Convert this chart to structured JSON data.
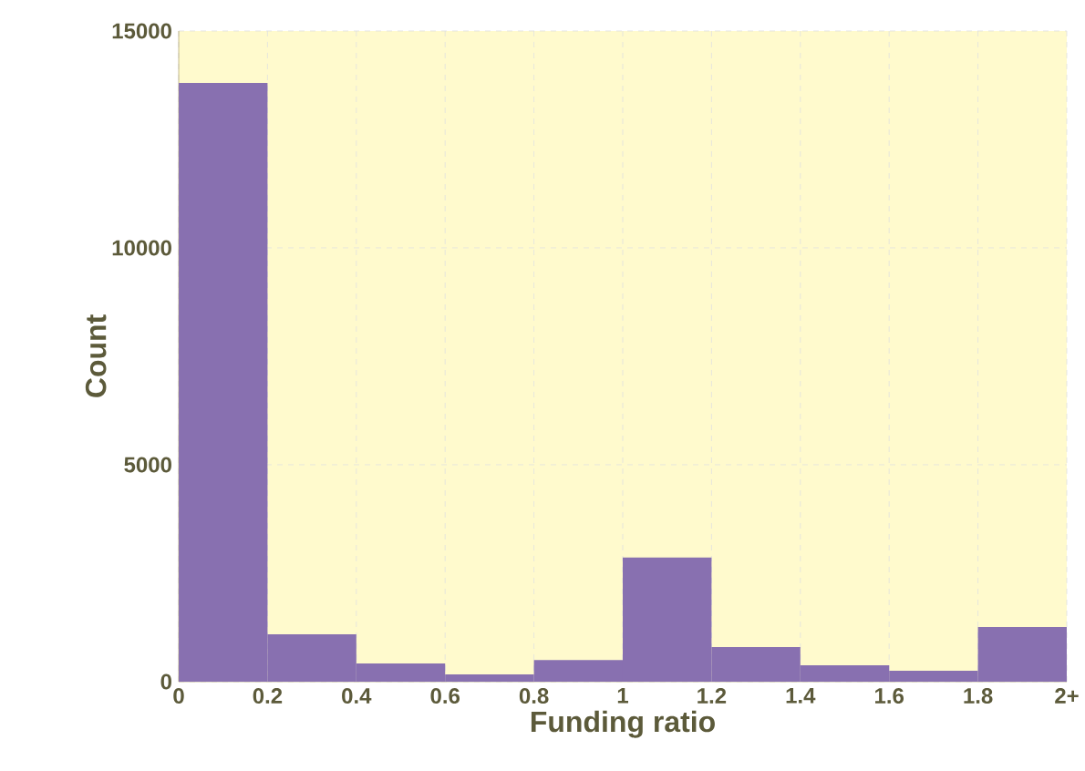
{
  "chart_data": {
    "type": "histogram",
    "xlabel": "Funding ratio",
    "ylabel": "Count",
    "bins": [
      0,
      0.2,
      0.4,
      0.6,
      0.8,
      1,
      1.2,
      1.4,
      1.6,
      1.8,
      2
    ],
    "values": [
      13800,
      1090,
      420,
      170,
      500,
      2860,
      800,
      380,
      250,
      1260
    ],
    "color": "#8870b0",
    "xlim": [
      0,
      2
    ],
    "ylim": [
      0,
      15000
    ],
    "xticks": [
      0,
      0.2,
      0.4,
      0.6,
      0.8,
      1,
      1.2,
      1.4,
      1.6,
      1.8,
      {
        "value": 2,
        "label": "2+"
      }
    ],
    "yticks": [
      0,
      5000,
      10000,
      15000
    ],
    "grid": true
  }
}
